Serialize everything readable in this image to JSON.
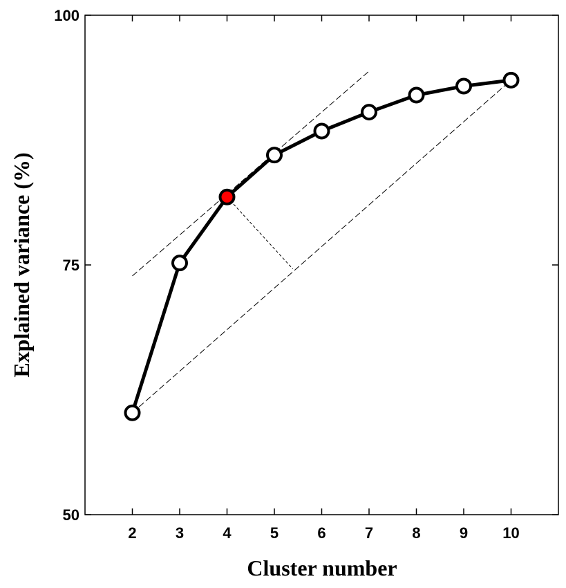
{
  "chart_data": {
    "type": "line",
    "xlabel": "Cluster number",
    "ylabel": "Explained variance (%)",
    "x": [
      2,
      3,
      4,
      5,
      6,
      7,
      8,
      9,
      10
    ],
    "y": [
      60.2,
      75.2,
      81.8,
      86.0,
      88.4,
      90.3,
      92.0,
      92.9,
      93.5
    ],
    "highlight_x": 4,
    "xlim": [
      1,
      11
    ],
    "ylim": [
      50,
      100
    ],
    "xticks": [
      "2",
      "3",
      "4",
      "5",
      "6",
      "7",
      "8",
      "9",
      "10"
    ],
    "yticks": [
      "50",
      "75",
      "100"
    ],
    "grid": false,
    "tangent_line": {
      "x": [
        2,
        7
      ],
      "y": [
        73.9,
        94.4
      ]
    },
    "chord_line": {
      "x": [
        2,
        10
      ],
      "y": [
        60.2,
        93.5
      ]
    },
    "perpendicular": {
      "x": [
        4,
        5.39
      ],
      "y": [
        81.8,
        74.6
      ]
    },
    "colors": {
      "series": "#000000",
      "marker_fill": "#ffffff",
      "highlight": "#ff0000"
    }
  }
}
